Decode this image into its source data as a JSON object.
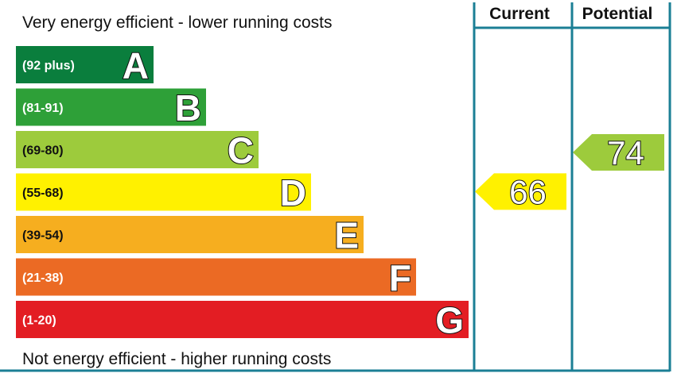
{
  "chart_data": {
    "type": "bar",
    "top_text": "Very energy efficient - lower running costs",
    "bottom_text": "Not energy efficient - higher running costs",
    "columns": [
      "Current",
      "Potential"
    ],
    "bands": [
      {
        "letter": "A",
        "range": "(92 plus)",
        "color": "#0a7e3d",
        "min": 92,
        "max": 100
      },
      {
        "letter": "B",
        "range": "(81-91)",
        "color": "#2ea038",
        "min": 81,
        "max": 91
      },
      {
        "letter": "C",
        "range": "(69-80)",
        "color": "#9dcb3c",
        "min": 69,
        "max": 80
      },
      {
        "letter": "D",
        "range": "(55-68)",
        "color": "#fff100",
        "min": 55,
        "max": 68
      },
      {
        "letter": "E",
        "range": "(39-54)",
        "color": "#f6ae1f",
        "min": 39,
        "max": 54
      },
      {
        "letter": "F",
        "range": "(21-38)",
        "color": "#eb6a24",
        "min": 21,
        "max": 38
      },
      {
        "letter": "G",
        "range": "(1-20)",
        "color": "#e31d23",
        "min": 1,
        "max": 20
      }
    ],
    "ratings": [
      {
        "column": "Current",
        "value": 66,
        "band": "D",
        "color": "#fff100"
      },
      {
        "column": "Potential",
        "value": 74,
        "band": "C",
        "color": "#9dcb3c"
      }
    ],
    "frame_color": "#1b7f95"
  }
}
